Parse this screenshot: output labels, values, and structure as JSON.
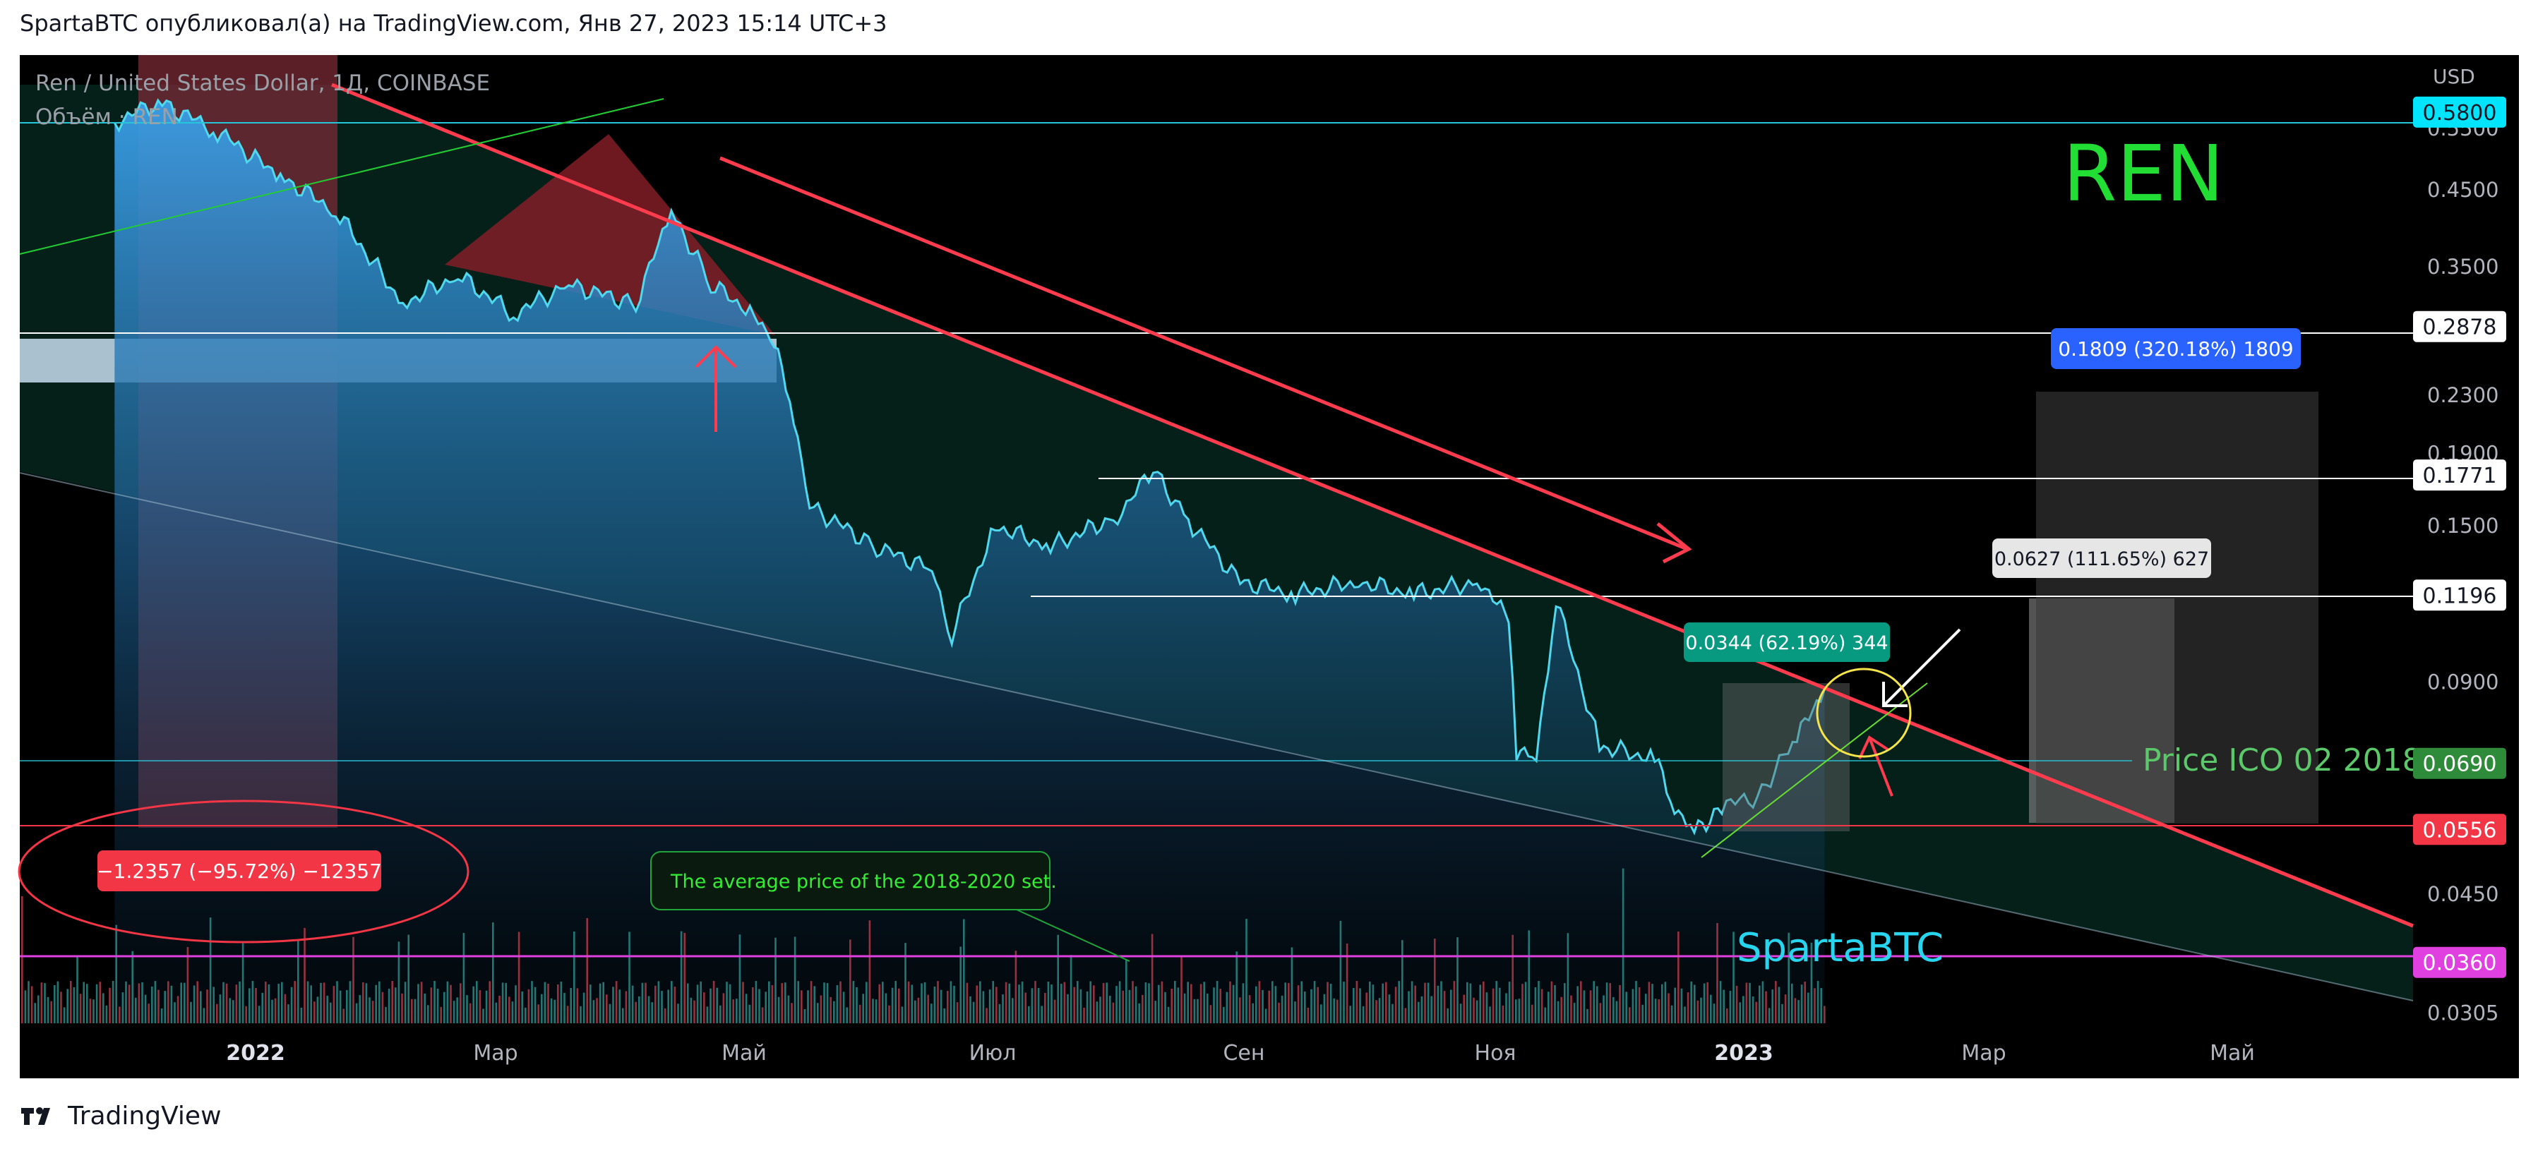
{
  "header": {
    "publisher_line": "SpartaBTC опубликовал(а) на TradingView.com, Янв 27, 2023 15:14 UTC+3"
  },
  "footer": {
    "brand": "TradingView",
    "logo_icon": "tradingview-logo-icon"
  },
  "legend": {
    "symbol_line": "Ren / United States Dollar, 1Д, COINBASE",
    "volume_line": "Объём · REN"
  },
  "currency": "USD",
  "colors": {
    "background": "#000000",
    "price_line": "#4fd8ee",
    "price_fill_top": "#3a9fe0",
    "trend_red": "#ff3b4e",
    "green_text": "#22dd33",
    "cyan_text": "#27d5ef",
    "magenta": "#e040e0",
    "teal_label": "#089981",
    "blue_label": "#2962ff"
  },
  "annotations": {
    "title_big": "REN",
    "watermark": "SpartaBTC",
    "ico_label": "Price ICO 02 2018",
    "avg_price_note": "The average price of the 2018-2020 set.",
    "measure_drop": "−1.2357 (−95.72%) −12357",
    "measure_62": "0.0344 (62.19%) 344",
    "measure_111": "0.0627 (111.65%) 627",
    "measure_320": "0.1809 (320.18%) 1809"
  },
  "chart_data": {
    "type": "line",
    "title": "Ren / United States Dollar, 1Д, COINBASE",
    "y_scale": "log",
    "ylim": [
      0.0285,
      0.62
    ],
    "y_ticks": [
      "0.5500",
      "0.4500",
      "0.3500",
      "0.2300",
      "0.1900",
      "0.1500",
      "0.0900",
      "0.0450",
      "0.0305"
    ],
    "x_ticks": [
      "2022",
      "Мар",
      "Май",
      "Июл",
      "Сен",
      "Ноя",
      "2023",
      "Мар",
      "Май"
    ],
    "price_labels": [
      {
        "value": "0.5800",
        "color": "#00e5ff"
      },
      {
        "value": "0.2878",
        "color": "#ffffff"
      },
      {
        "value": "0.1771",
        "color": "#ffffff"
      },
      {
        "value": "0.1196",
        "color": "#ffffff"
      },
      {
        "value": "0.0690",
        "color": "#2e8b3a"
      },
      {
        "value": "0.0556",
        "color": "#f23645"
      },
      {
        "value": "0.0360",
        "color": "#e040e0"
      }
    ],
    "series": [
      {
        "name": "Ren / United States Dollar",
        "x": [
          "2021-11-20",
          "2021-12-01",
          "2021-12-15",
          "2022-01-01",
          "2022-01-15",
          "2022-02-01",
          "2022-02-15",
          "2022-03-01",
          "2022-03-15",
          "2022-04-01",
          "2022-04-10",
          "2022-04-20",
          "2022-05-01",
          "2022-05-05",
          "2022-05-10",
          "2022-05-15",
          "2022-06-01",
          "2022-06-15",
          "2022-06-20",
          "2022-07-01",
          "2022-07-15",
          "2022-08-01",
          "2022-08-10",
          "2022-08-20",
          "2022-09-01",
          "2022-09-15",
          "2022-10-01",
          "2022-10-15",
          "2022-11-01",
          "2022-11-08",
          "2022-11-10",
          "2022-11-15",
          "2022-11-20",
          "2022-12-01",
          "2022-12-15",
          "2022-12-20",
          "2022-12-25",
          "2023-01-01",
          "2023-01-10",
          "2023-01-20",
          "2023-01-27"
        ],
        "values": [
          0.56,
          0.6,
          0.55,
          0.47,
          0.42,
          0.31,
          0.34,
          0.3,
          0.33,
          0.31,
          0.42,
          0.33,
          0.3,
          0.28,
          0.23,
          0.16,
          0.14,
          0.13,
          0.105,
          0.15,
          0.14,
          0.155,
          0.18,
          0.15,
          0.125,
          0.12,
          0.125,
          0.12,
          0.125,
          0.11,
          0.072,
          0.07,
          0.118,
          0.073,
          0.07,
          0.06,
          0.055,
          0.06,
          0.062,
          0.075,
          0.088
        ]
      }
    ]
  }
}
